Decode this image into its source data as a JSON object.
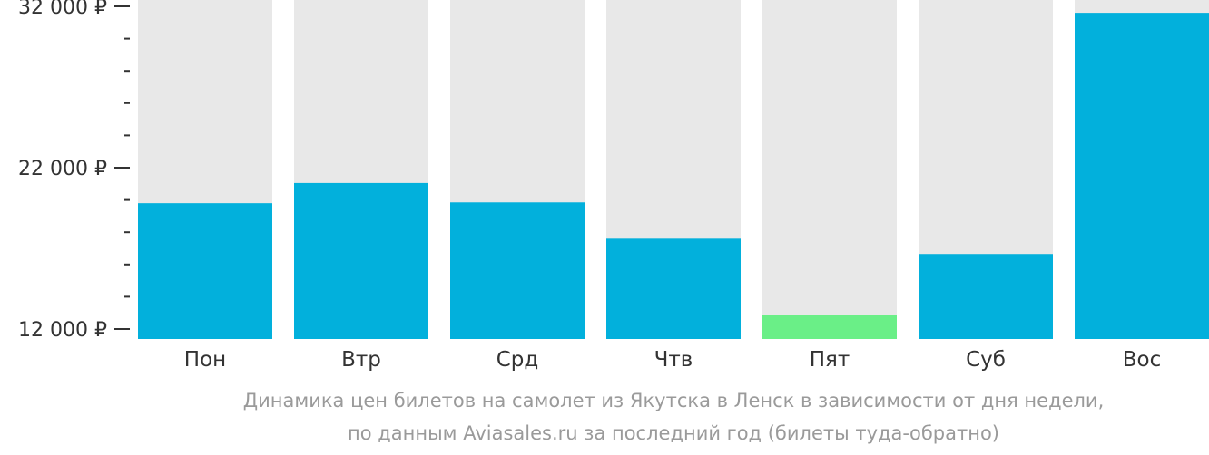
{
  "chart_data": {
    "type": "bar",
    "categories": [
      "Пон",
      "Втр",
      "Срд",
      "Чтв",
      "Пят",
      "Суб",
      "Вос"
    ],
    "values": [
      19800,
      21050,
      19850,
      17600,
      12850,
      16650,
      31600
    ],
    "ylim": [
      12000,
      32000
    ],
    "y_tick_labels": [
      {
        "value": 12000,
        "label": "12 000 ₽"
      },
      {
        "value": 22000,
        "label": "22 000 ₽"
      },
      {
        "value": 32000,
        "label": "32 000 ₽"
      }
    ],
    "minor_ticks": [
      14000,
      16000,
      18000,
      20000,
      24000,
      26000,
      28000,
      30000
    ],
    "highlight_index": 4,
    "grid": false,
    "legend": "none"
  },
  "colors": {
    "bar": "#02b0dc",
    "bar_min": "#6aef87",
    "track": "#e8e8e8",
    "axis_text": "#333333",
    "caption": "#9a9a9a"
  },
  "caption": {
    "line1": "Динамика цен билетов на самолет из Якутска в Ленск в зависимости от дня недели,",
    "line2": "по данным Aviasales.ru за последний год (билеты туда-обратно)"
  }
}
